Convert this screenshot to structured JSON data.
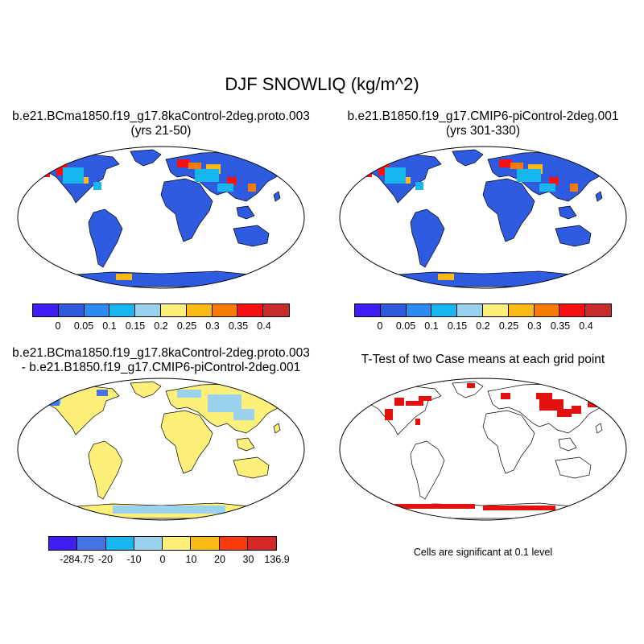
{
  "figure": {
    "title": "DJF SNOWLIQ (kg/m^2)"
  },
  "panels": {
    "case1": {
      "title_line1": "b.e21.BCma1850.f19_g17.8kaControl-2deg.proto.003",
      "title_line2": "(yrs 21-50)"
    },
    "case2": {
      "title_line1": "b.e21.B1850.f19_g17.CMIP6-piControl-2deg.001",
      "title_line2": "(yrs 301-330)"
    },
    "diff": {
      "title_line1": "b.e21.BCma1850.f19_g17.8kaControl-2deg.proto.003",
      "title_line2": "- b.e21.B1850.f19_g17.CMIP6-piControl-2deg.001"
    },
    "ttest": {
      "title": "T-Test of two Case means at each grid point",
      "note": "Cells are significant at 0.1 level"
    }
  },
  "colorbars": {
    "mean": {
      "colors": [
        "#3f1ef5",
        "#2f5be0",
        "#2a8cf0",
        "#16b6f0",
        "#9ad2ee",
        "#fdf07a",
        "#fcbb14",
        "#f87b06",
        "#fa1010",
        "#c92a2a"
      ],
      "labels": [
        "0",
        "0.05",
        "0.1",
        "0.15",
        "0.2",
        "0.25",
        "0.3",
        "0.35",
        "0.4"
      ]
    },
    "diff": {
      "colors": [
        "#3f1ef5",
        "#4473e6",
        "#16b6f0",
        "#9ad2ee",
        "#fdf07a",
        "#fcbb14",
        "#fa3a0a",
        "#d62626"
      ],
      "labels": [
        "-284.75",
        "-20",
        "-10",
        "0",
        "10",
        "20",
        "30",
        "136.9"
      ]
    }
  },
  "colors": {
    "ocean": "#ffffff",
    "land_low": "#2f5be0",
    "land_diff": "#fdf07a",
    "significant": "#e31010"
  }
}
